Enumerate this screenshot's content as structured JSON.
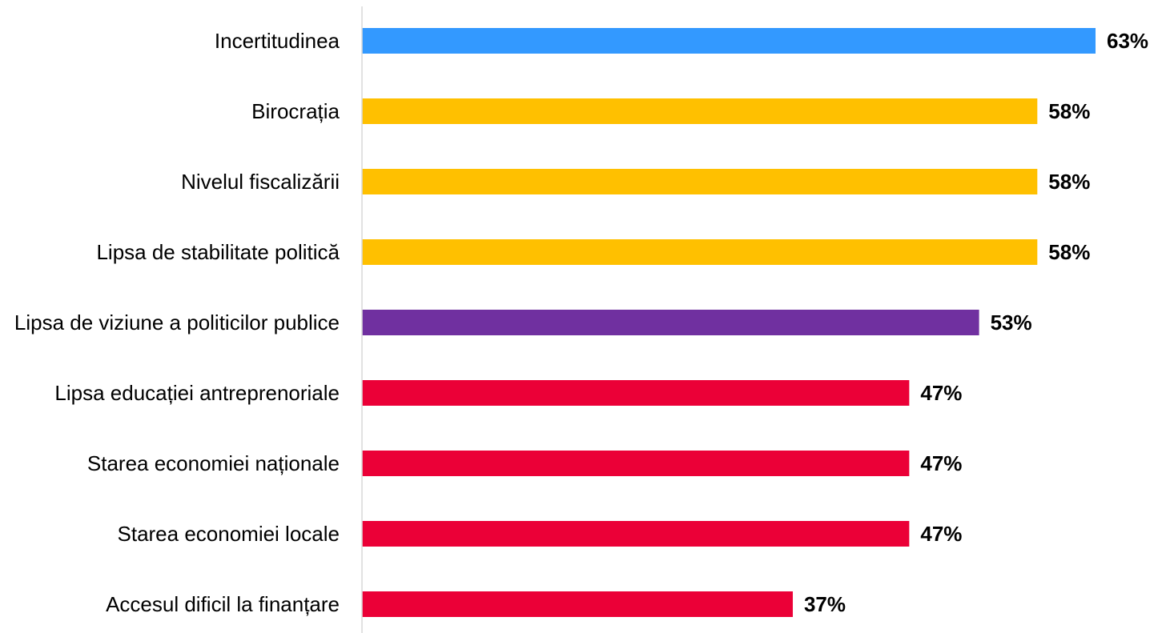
{
  "chart_data": {
    "type": "bar",
    "orientation": "horizontal",
    "title": "",
    "xlabel": "",
    "ylabel": "",
    "xlim": [
      0,
      63
    ],
    "grid": false,
    "legend": "none",
    "categories": [
      "Incertitudinea",
      "Birocrația",
      "Nivelul fiscalizării",
      "Lipsa de stabilitate politică",
      "Lipsa de viziune a politicilor publice",
      "Lipsa educației antreprenoriale",
      "Starea economiei naționale",
      "Starea economiei locale",
      "Accesul dificil la finanțare"
    ],
    "values": [
      63,
      58,
      58,
      58,
      53,
      47,
      47,
      47,
      37
    ],
    "value_labels": [
      "63%",
      "58%",
      "58%",
      "58%",
      "53%",
      "47%",
      "47%",
      "47%",
      "37%"
    ],
    "colors": [
      "#3399FF",
      "#FFC000",
      "#FFC000",
      "#FFC000",
      "#7030A0",
      "#EB0037",
      "#EB0037",
      "#EB0037",
      "#EB0037"
    ],
    "axis_color": "#D9D9D9"
  }
}
